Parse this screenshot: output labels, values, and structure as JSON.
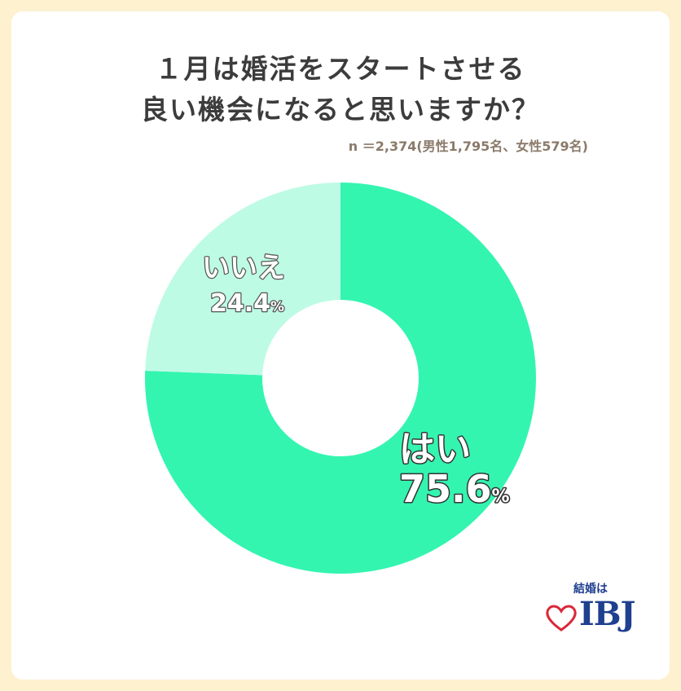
{
  "title": {
    "line1": "１月は婚活をスタートさせる",
    "line2": "良い機会になると思いますか？"
  },
  "sample_note": "n ＝2,374(男性1,795名、女性579名)",
  "logo": {
    "tagline": "結婚は",
    "brand": "IBJ"
  },
  "colors": {
    "yes": "#33f5b0",
    "no": "#bdfbe5",
    "background": "#fdf1cf"
  },
  "chart_data": {
    "type": "pie",
    "donut": true,
    "slices": [
      {
        "label": "はい",
        "value": 75.6,
        "display": "75.6",
        "color": "#33f5b0"
      },
      {
        "label": "いいえ",
        "value": 24.4,
        "display": "24.4",
        "color": "#bdfbe5"
      }
    ],
    "unit": "%"
  }
}
